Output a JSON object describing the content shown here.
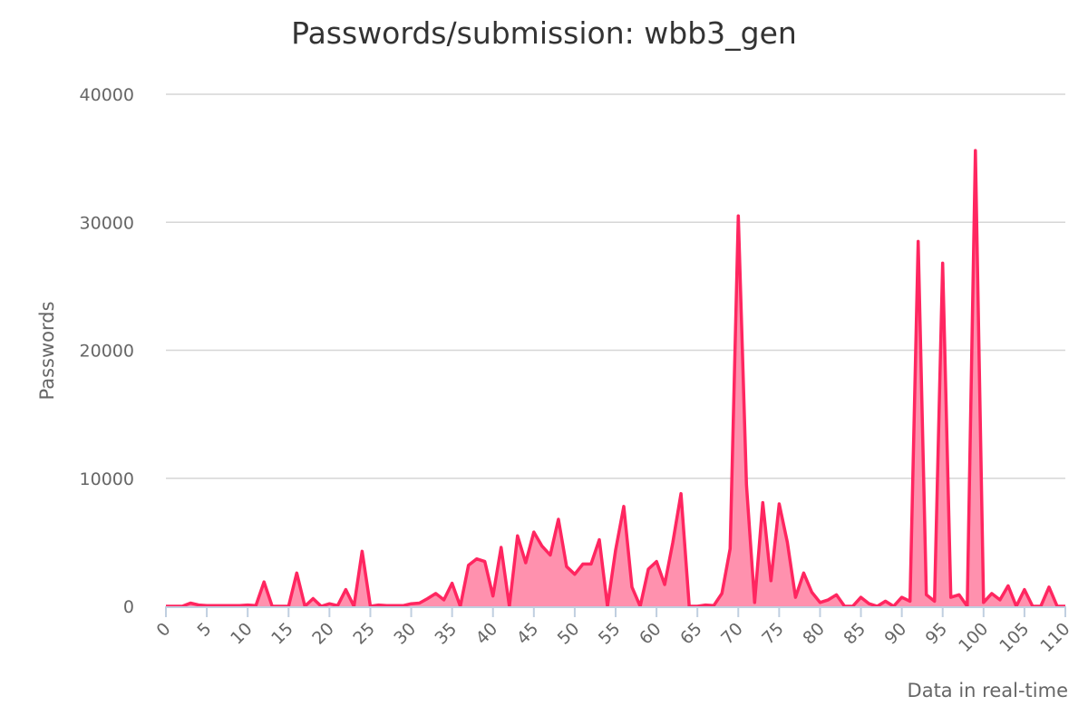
{
  "chart_data": {
    "type": "area",
    "title": "Passwords/submission: wbb3_gen",
    "xlabel": "Data in real-time",
    "ylabel": "Passwords",
    "xlim": [
      0,
      110
    ],
    "ylim": [
      0,
      40000
    ],
    "x_ticks": [
      0,
      5,
      10,
      15,
      20,
      25,
      30,
      35,
      40,
      45,
      50,
      55,
      60,
      65,
      70,
      75,
      80,
      85,
      90,
      95,
      100,
      105,
      110
    ],
    "y_ticks": [
      0,
      10000,
      20000,
      30000,
      40000
    ],
    "grid": true,
    "legend": "none",
    "colors": {
      "line": "#ff2660",
      "fill": "#ff91ae",
      "grid": "#d6d6d6",
      "axis": "#c0cfe0"
    },
    "series": [
      {
        "values": [
          0,
          0,
          0,
          250,
          100,
          50,
          50,
          50,
          50,
          50,
          100,
          50,
          1900,
          0,
          0,
          0,
          2600,
          0,
          600,
          0,
          200,
          50,
          1300,
          0,
          4300,
          0,
          100,
          50,
          50,
          50,
          200,
          250,
          600,
          1000,
          500,
          1800,
          0,
          3200,
          3700,
          3500,
          800,
          4600,
          0,
          5500,
          3400,
          5800,
          4700,
          4000,
          6800,
          3100,
          2500,
          3300,
          3300,
          5200,
          0,
          4400,
          7800,
          1500,
          0,
          2900,
          3500,
          1700,
          5000,
          8800,
          0,
          0,
          100,
          50,
          1000,
          4500,
          30500,
          9500,
          300,
          8100,
          2000,
          8000,
          5000,
          700,
          2600,
          1100,
          300,
          500,
          900,
          0,
          0,
          700,
          200,
          0,
          400,
          0,
          700,
          400,
          28500,
          900,
          400,
          26800,
          700,
          900,
          0,
          35600,
          300,
          1000,
          500,
          1600,
          0,
          1300,
          0,
          0,
          1500,
          0,
          0
        ]
      }
    ]
  }
}
